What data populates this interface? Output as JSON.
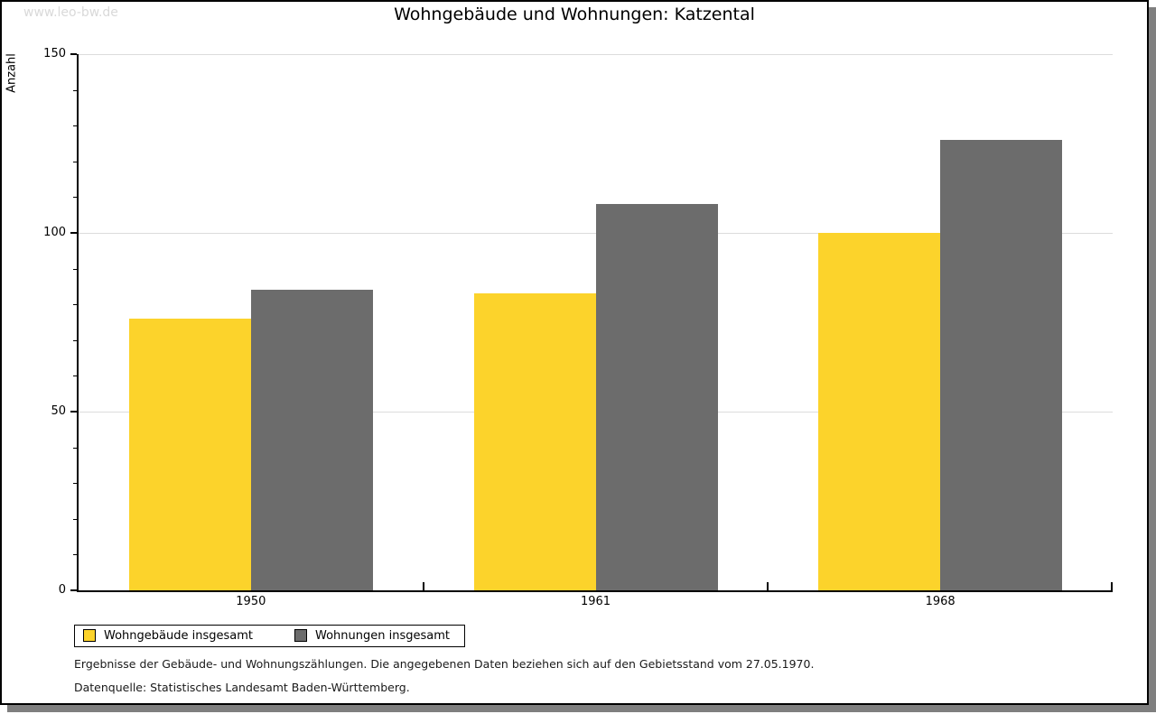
{
  "watermark": "www.leo-bw.de",
  "title": "Wohngebäude und Wohnungen: Katzental",
  "footnotes": {
    "line1": "Ergebnisse der Gebäude- und Wohnungszählungen. Die angegebenen Daten beziehen sich auf den Gebietsstand vom 27.05.1970.",
    "line2": "Datenquelle: Statistisches Landesamt Baden-Württemberg."
  },
  "chart_data": {
    "type": "bar",
    "title": "Wohngebäude und Wohnungen: Katzental",
    "xlabel": "",
    "ylabel": "Anzahl",
    "categories": [
      "1950",
      "1961",
      "1968"
    ],
    "series": [
      {
        "name": "Wohngebäude insgesamt",
        "color": "#fcd32b",
        "values": [
          76,
          83,
          100
        ]
      },
      {
        "name": "Wohnungen insgesamt",
        "color": "#6c6c6c",
        "values": [
          84,
          108,
          126
        ]
      }
    ],
    "ylim": [
      0,
      150
    ],
    "y_major_step": 50,
    "y_minor_step": 10,
    "grid": "horizontal major gridlines at 50/100/150",
    "legend_position": "bottom-left"
  },
  "colors": {
    "grid": "#dcdcdc",
    "axis": "#000000",
    "watermark": "#d9d9d9",
    "frame_shadow": "#7f7f7f",
    "footnote_text": "#1a1a1a"
  }
}
